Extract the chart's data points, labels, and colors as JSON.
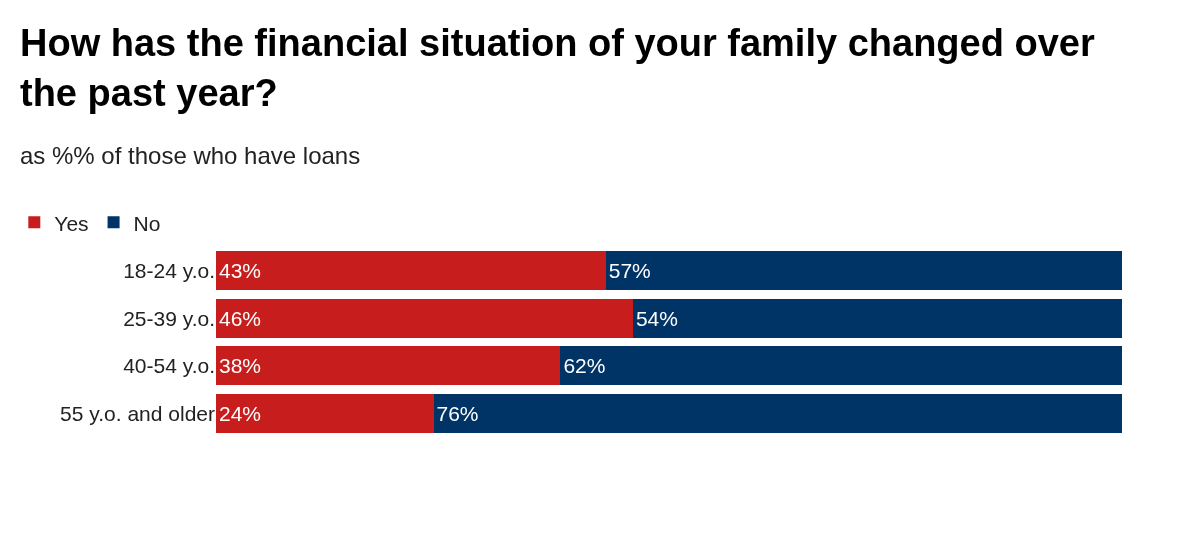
{
  "chart_data": {
    "type": "bar",
    "orientation": "horizontal",
    "stacked": true,
    "title": "How has the financial situation of your family changed over the past year?",
    "subtitle": "as %% of those who have loans",
    "categories": [
      "18-24 y.o.",
      "25-39 y.o.",
      "40-54 y.o.",
      "55 y.o. and older"
    ],
    "series": [
      {
        "name": "Yes",
        "color": "#c71e1d",
        "values": [
          43,
          46,
          38,
          24
        ],
        "value_labels": [
          "43%",
          "46%",
          "38%",
          "24%"
        ]
      },
      {
        "name": "No",
        "color": "#003366",
        "values": [
          57,
          54,
          62,
          76
        ],
        "value_labels": [
          "57%",
          "54%",
          "62%",
          "76%"
        ]
      }
    ],
    "legend": "top left",
    "tick_labels": "y"
  }
}
